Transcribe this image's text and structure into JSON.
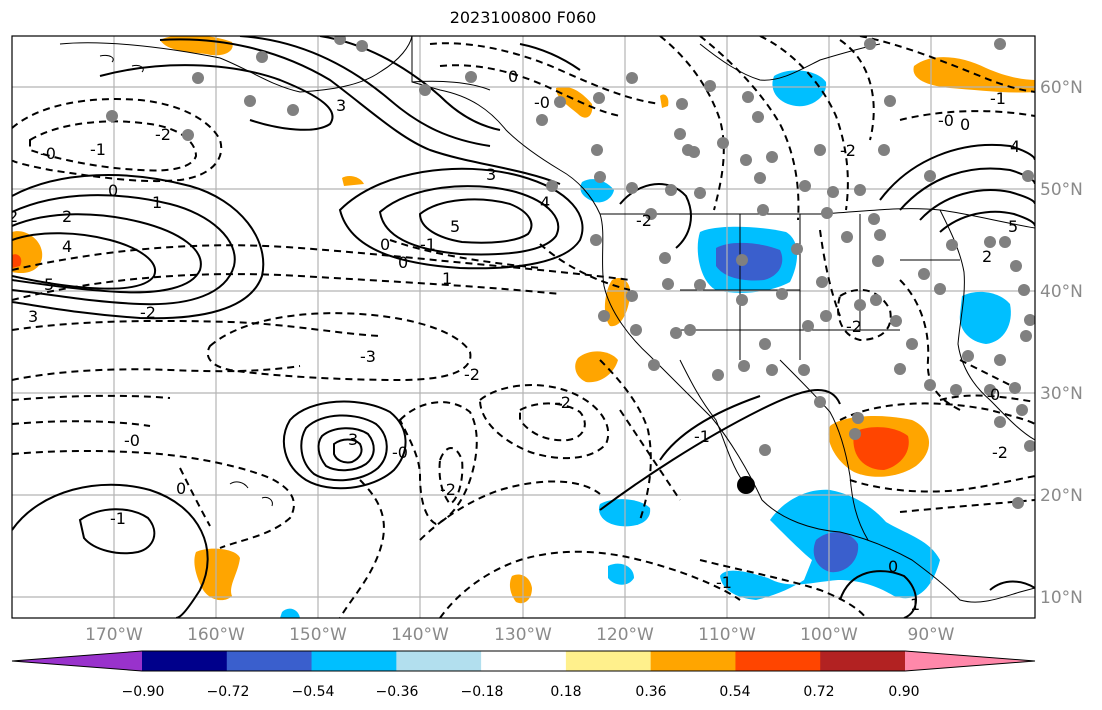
{
  "title": "2023100800 F060",
  "longitude_labels": [
    "170°W",
    "160°W",
    "150°W",
    "140°W",
    "130°W",
    "120°W",
    "110°W",
    "100°W",
    "90°W"
  ],
  "latitude_labels": [
    "60°N",
    "50°N",
    "40°N",
    "30°N",
    "20°N",
    "10°N"
  ],
  "colorbar": {
    "ticks": [
      "−0.90",
      "−0.72",
      "−0.54",
      "−0.36",
      "−0.18",
      "0.18",
      "0.36",
      "0.54",
      "0.72",
      "0.90"
    ],
    "colors": [
      "#9932cc",
      "#00008b",
      "#3a5fcd",
      "#00bfff",
      "#b2dfee",
      "#ffffff",
      "#fff08c",
      "#ffa500",
      "#ff4500",
      "#b22222",
      "#ff88aa"
    ]
  },
  "contour_labels": [
    "3",
    "2",
    "-2",
    "-1",
    "0",
    "0",
    "-0",
    "-0",
    "1",
    "2",
    "4",
    "5",
    "3",
    "3",
    "4",
    "5",
    "-2",
    "0",
    "-1",
    "-2",
    "0",
    "1",
    "-3",
    "-2",
    "-2",
    "-0",
    "3",
    "-2",
    "-0",
    "0",
    "-1",
    "-1",
    "-1",
    "-0",
    "-1",
    "-2",
    "0",
    "0",
    "1",
    "0",
    "2",
    "5",
    "4",
    "-2",
    "-2"
  ],
  "markers": {
    "large_dot": {
      "lon": -108.0,
      "lat": 21.0
    }
  }
}
